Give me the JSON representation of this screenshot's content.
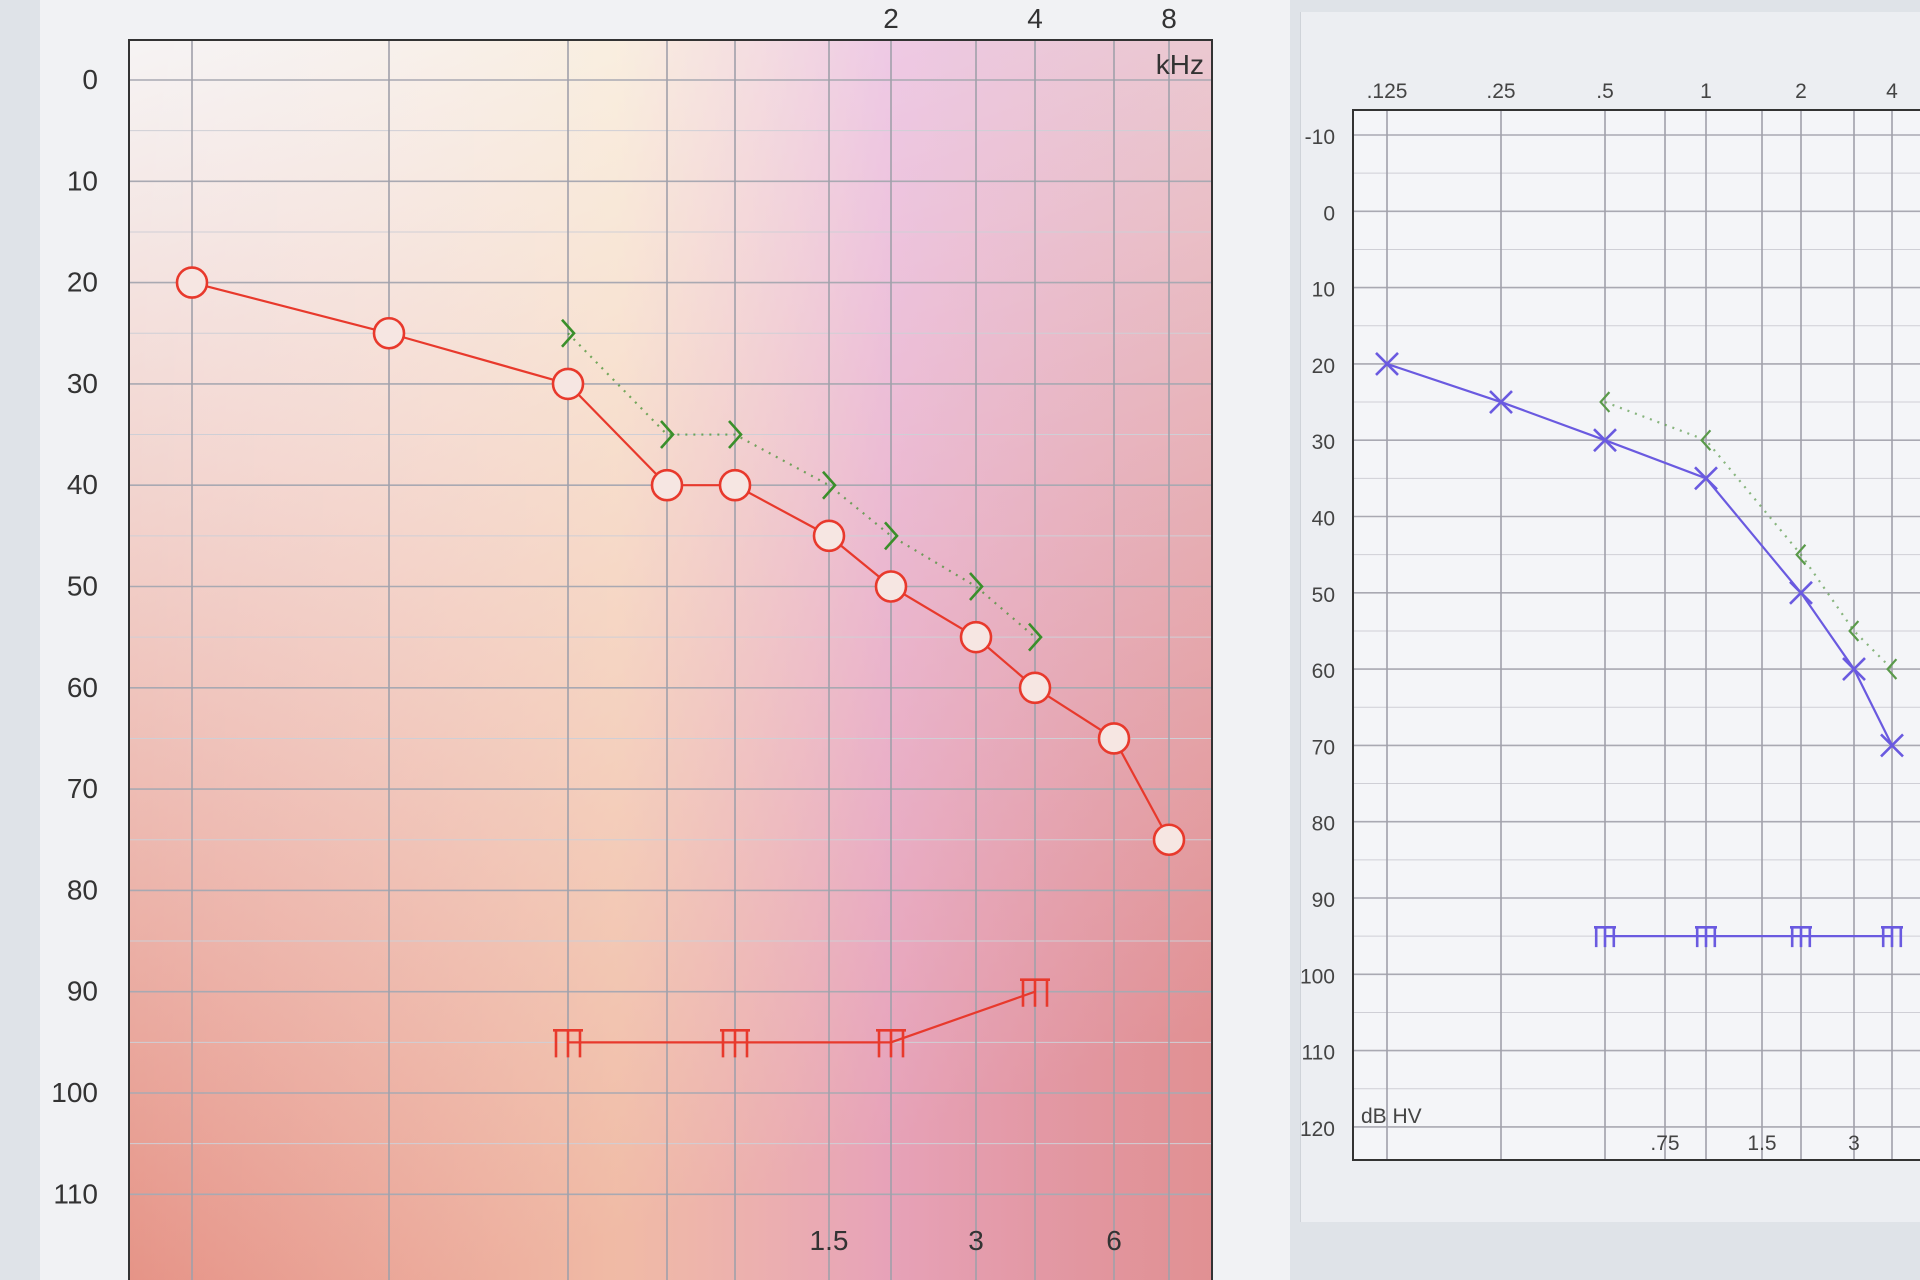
{
  "chart_data": [
    {
      "type": "line",
      "x_scale": "log",
      "x_unit_label": "kHz",
      "x_ticks_top": [
        "2",
        "4",
        "8"
      ],
      "x_ticks_bottom": [
        "1.5",
        "3",
        "6"
      ],
      "y_ticks": [
        "0",
        "10",
        "20",
        "30",
        "40",
        "50",
        "60",
        "70",
        "80",
        "90",
        "100",
        "110"
      ],
      "ylim": [
        0,
        110
      ],
      "y_inverted": true,
      "grid": true,
      "colors": {
        "air": "#e8392c",
        "bone": "#3a8f2a",
        "masking": "#e8392c"
      },
      "series": [
        {
          "symbol": "circle",
          "style": "solid",
          "x": [
            0.125,
            0.25,
            0.5,
            0.75,
            1,
            1.5,
            2,
            3,
            4,
            6,
            8
          ],
          "y": [
            20,
            25,
            30,
            40,
            40,
            45,
            50,
            55,
            60,
            65,
            75
          ]
        },
        {
          "symbol": "right-angle-bracket",
          "style": "dotted",
          "x": [
            0.5,
            0.75,
            1,
            1.5,
            2,
            3,
            4
          ],
          "y": [
            25,
            35,
            35,
            40,
            45,
            50,
            55
          ]
        },
        {
          "symbol": "masking-bracket",
          "style": "solid",
          "x": [
            0.5,
            1,
            2,
            4
          ],
          "y": [
            95,
            95,
            95,
            90
          ]
        }
      ]
    },
    {
      "type": "line",
      "x_scale": "log",
      "x_ticks_top": [
        ".125",
        ".25",
        ".5",
        "1",
        "2",
        "4"
      ],
      "x_ticks_bottom": [
        ".75",
        "1.5",
        "3"
      ],
      "y_ticks": [
        "-10",
        "0",
        "10",
        "20",
        "30",
        "40",
        "50",
        "60",
        "70",
        "80",
        "90",
        "100",
        "110",
        "120"
      ],
      "y_unit_label": "dB HV",
      "ylim": [
        -10,
        120
      ],
      "y_inverted": true,
      "grid": true,
      "colors": {
        "air": "#6a5ae0",
        "bone": "#5a9a4a",
        "masking": "#6a5ae0"
      },
      "series": [
        {
          "symbol": "cross",
          "style": "solid",
          "x": [
            0.125,
            0.25,
            0.5,
            1,
            2,
            3,
            4
          ],
          "y": [
            20,
            25,
            30,
            35,
            50,
            60,
            70
          ]
        },
        {
          "symbol": "left-angle-bracket",
          "style": "dotted",
          "x": [
            0.5,
            1,
            2,
            3,
            4
          ],
          "y": [
            25,
            30,
            45,
            55,
            60
          ]
        },
        {
          "symbol": "masking-bracket",
          "style": "solid",
          "x": [
            0.5,
            1,
            2,
            4
          ],
          "y": [
            95,
            95,
            95,
            95
          ]
        }
      ]
    }
  ]
}
